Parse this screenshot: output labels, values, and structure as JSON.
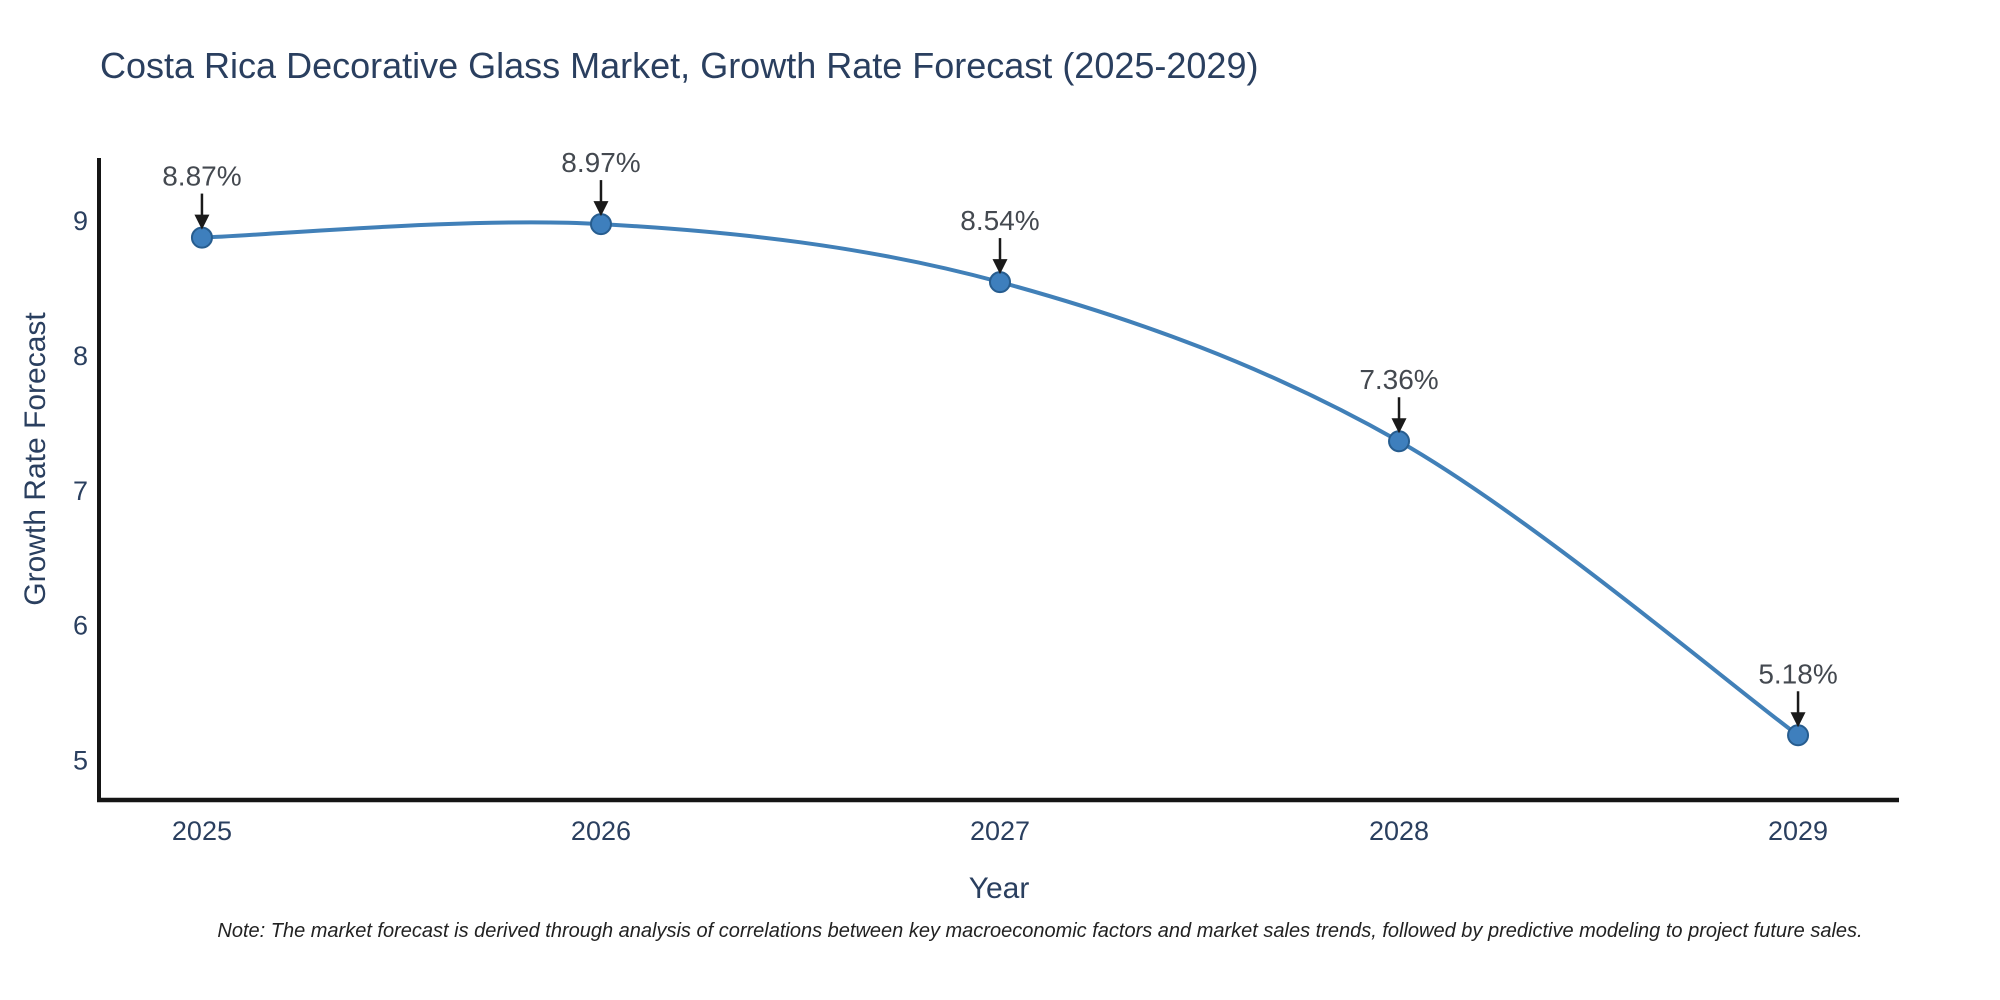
{
  "chart_data": {
    "type": "line",
    "title": "Costa Rica Decorative Glass Market, Growth Rate Forecast (2025-2029)",
    "xlabel": "Year",
    "ylabel": "Growth Rate Forecast",
    "x": [
      2025,
      2026,
      2027,
      2028,
      2029
    ],
    "y": [
      8.87,
      8.97,
      8.54,
      7.36,
      5.18
    ],
    "point_labels": [
      "8.87%",
      "8.97%",
      "8.54%",
      "7.36%",
      "5.18%"
    ],
    "xticks": [
      2025,
      2026,
      2027,
      2028,
      2029
    ],
    "yticks": [
      5,
      6,
      7,
      8,
      9
    ],
    "xlim": [
      2024.742,
      2029.253
    ],
    "ylim": [
      4.7,
      9.46
    ],
    "grid": false,
    "legend": false,
    "line_shape": "spline",
    "colors": {
      "line": "#4180b8",
      "marker_fill": "#3e7fbd",
      "marker_stroke": "#275d8f",
      "axis_line": "#151515",
      "chart_text": "#2a3f5f",
      "annotation_text": "#444950",
      "arrow": "#1a1a1a"
    }
  },
  "note": "Note: The market forecast is derived through analysis of correlations between key macroeconomic factors and market sales trends, followed by predictive modeling to project future sales."
}
